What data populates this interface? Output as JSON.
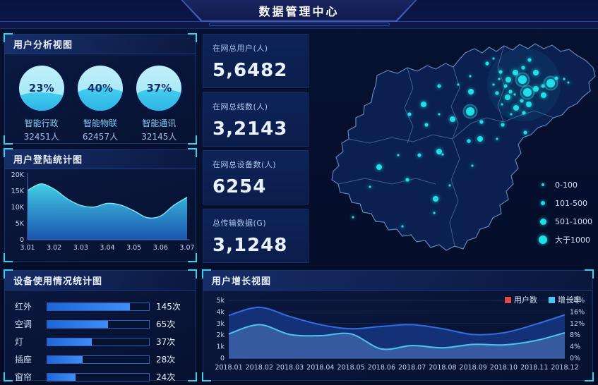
{
  "header": {
    "title": "数据管理中心"
  },
  "panels": {
    "user_analysis": {
      "title": "用户分析视图"
    },
    "login": {
      "title": "用户登陆统计图"
    },
    "device": {
      "title": "设备使用情况统计图"
    },
    "growth": {
      "title": "用户增长视图"
    }
  },
  "kpis": [
    {
      "label": "在网总用户(人)",
      "value": "5,6482"
    },
    {
      "label": "在网总线数(人)",
      "value": "3,2143"
    },
    {
      "label": "在网总设备数(人)",
      "value": "6254"
    },
    {
      "label": "总传输数据(G)",
      "value": "3,1248"
    }
  ],
  "colors": {
    "accent_cyan": "#2fd4f2",
    "dot_cyan": "#1fe0e6",
    "bar_blue": "#2e7be8",
    "users_line": "#2f6fe4",
    "users_fill": "#16337c",
    "rate_line": "#49c6f0",
    "legend_users_swatch": "#e04848",
    "legend_rate_swatch": "#49c6f0"
  },
  "map": {
    "legend": [
      {
        "label": "0-100",
        "tier": 1
      },
      {
        "label": "101-500",
        "tier": 2
      },
      {
        "label": "501-1000",
        "tier": 3
      },
      {
        "label": "大于1000",
        "tier": 4
      }
    ],
    "dots": [
      [
        253,
        45,
        2
      ],
      [
        262,
        38,
        1
      ],
      [
        272,
        57,
        2
      ],
      [
        283,
        68,
        3
      ],
      [
        279,
        77,
        2
      ],
      [
        293,
        58,
        3
      ],
      [
        304,
        51,
        2
      ],
      [
        313,
        40,
        2
      ],
      [
        322,
        58,
        3
      ],
      [
        332,
        77,
        2
      ],
      [
        322,
        81,
        3
      ],
      [
        333,
        90,
        3
      ],
      [
        351,
        66,
        2
      ],
      [
        362,
        67,
        1
      ],
      [
        368,
        72,
        1
      ],
      [
        286,
        85,
        2
      ],
      [
        282,
        93,
        3
      ],
      [
        292,
        89,
        1
      ],
      [
        302,
        98,
        2
      ],
      [
        294,
        108,
        3
      ],
      [
        305,
        115,
        2
      ],
      [
        287,
        117,
        1
      ],
      [
        274,
        103,
        1
      ],
      [
        267,
        87,
        2
      ],
      [
        262,
        75,
        1
      ],
      [
        270,
        67,
        1
      ],
      [
        312,
        103,
        3
      ],
      [
        303,
        68,
        4
      ],
      [
        310,
        86,
        4
      ],
      [
        343,
        73,
        4
      ],
      [
        229,
        113,
        4
      ],
      [
        230,
        85,
        3
      ],
      [
        185,
        77,
        2
      ],
      [
        212,
        75,
        1
      ],
      [
        229,
        63,
        1
      ],
      [
        163,
        103,
        3
      ],
      [
        143,
        117,
        2
      ],
      [
        185,
        117,
        1
      ],
      [
        204,
        124,
        3
      ],
      [
        245,
        128,
        2
      ],
      [
        275,
        132,
        2
      ],
      [
        167,
        132,
        2
      ],
      [
        227,
        155,
        2
      ],
      [
        243,
        152,
        3
      ],
      [
        267,
        152,
        1
      ],
      [
        307,
        143,
        2
      ],
      [
        185,
        170,
        3
      ],
      [
        190,
        174,
        1
      ],
      [
        157,
        175,
        2
      ],
      [
        127,
        175,
        1
      ],
      [
        100,
        192,
        3
      ],
      [
        140,
        210,
        2
      ],
      [
        87,
        220,
        1
      ],
      [
        180,
        237,
        3
      ],
      [
        200,
        218,
        1
      ],
      [
        178,
        257,
        1
      ],
      [
        63,
        263,
        1
      ],
      [
        133,
        276,
        1
      ],
      [
        232,
        190,
        1
      ]
    ]
  },
  "chart_data": [
    {
      "id": "user_gauges",
      "type": "gauge",
      "title": "用户分析视图",
      "items": [
        {
          "label": "智能行政",
          "percent": "23%",
          "count": "32451人",
          "water_level": 40
        },
        {
          "label": "智能物联",
          "percent": "40%",
          "count": "62457人",
          "water_level": 52
        },
        {
          "label": "智能通讯",
          "percent": "37%",
          "count": "32145人",
          "water_level": 48
        }
      ]
    },
    {
      "id": "login_area",
      "type": "area",
      "title": "用户登陆统计图",
      "x_ticks": [
        "3.01",
        "3.02",
        "3.03",
        "3.04",
        "3.05",
        "3.06",
        "3.07"
      ],
      "y_ticks": [
        "0",
        "5K",
        "10K",
        "15K",
        "20K"
      ],
      "ylim": [
        0,
        20
      ],
      "values_k": [
        15.2,
        17.2,
        15.6,
        12.6,
        10.6,
        10.1,
        11.2,
        10.7,
        8.9,
        6.8,
        7.3,
        10.6,
        13.1
      ]
    },
    {
      "id": "device_bars",
      "type": "bar",
      "title": "设备使用情况统计图",
      "categories": [
        "红外",
        "空调",
        "灯",
        "插座",
        "窗帘"
      ],
      "values": [
        145,
        65,
        37,
        28,
        24
      ],
      "unit": "次",
      "value_labels": [
        "145次",
        "65次",
        "37次",
        "28次",
        "24次"
      ],
      "display_percent": [
        81,
        60,
        44,
        35,
        28
      ]
    },
    {
      "id": "growth_dual",
      "type": "area",
      "title": "用户增长视图",
      "categories": [
        "2018.01",
        "2018.02",
        "2018.03",
        "2018.04",
        "2018.05",
        "2018.06",
        "2018.07",
        "2018.08",
        "2018.09",
        "2018.10",
        "2018.11",
        "2018.12"
      ],
      "left_ticks": [
        "0",
        "1k",
        "2k",
        "3k",
        "4k",
        "5k"
      ],
      "right_ticks": [
        "0%",
        "4%",
        "8%",
        "12%",
        "16%",
        "20%"
      ],
      "left_lim": [
        0,
        5
      ],
      "right_lim": [
        0,
        20
      ],
      "series": [
        {
          "name": "用户数",
          "axis": "left",
          "values_k": [
            3.7,
            4.4,
            3.6,
            2.9,
            2.55,
            2.75,
            2.9,
            2.55,
            2.05,
            2.2,
            2.9,
            3.75
          ]
        },
        {
          "name": "增长率",
          "axis": "right",
          "values_pct": [
            8.4,
            11.6,
            8.2,
            7.8,
            8.4,
            3.2,
            4.4,
            3.6,
            4.8,
            4.6,
            6.0,
            8.8
          ]
        }
      ],
      "legend_position": "top-right"
    },
    {
      "id": "map_scatter",
      "type": "scatter",
      "title": "",
      "size_legend": [
        "0-100",
        "101-500",
        "501-1000",
        "大于1000"
      ]
    }
  ]
}
